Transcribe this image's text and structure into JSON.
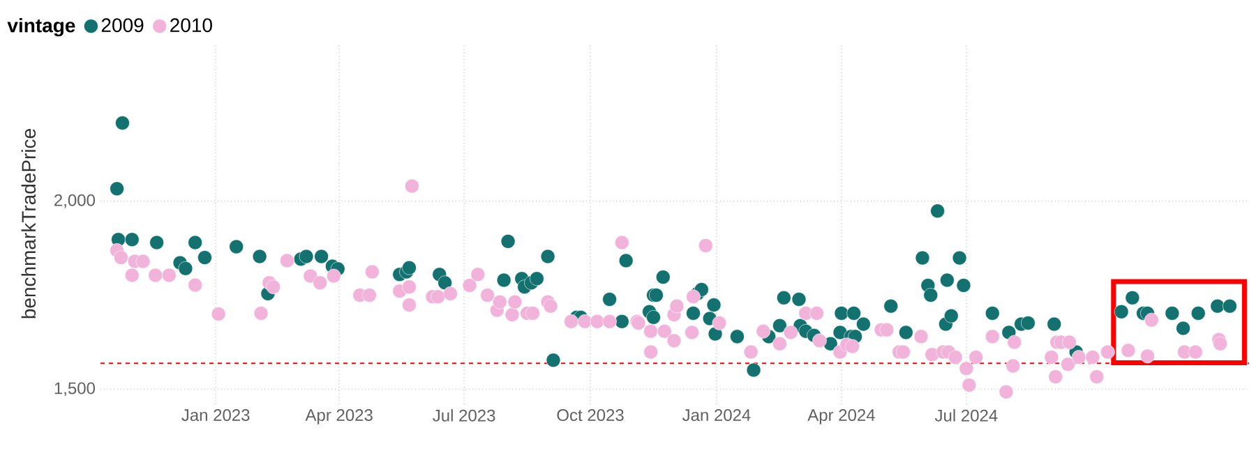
{
  "chart_data": {
    "type": "scatter",
    "ylabel": "benchmarkTradePrice",
    "legend_title": "vintage",
    "legend": "top left",
    "marker": "circle",
    "grid": true,
    "xlim": [
      "2022-10-09",
      "2025-01-23"
    ],
    "ylim": [
      1460,
      2420
    ],
    "xticks": [
      {
        "value": "2023-01-01",
        "label": "Jan 2023"
      },
      {
        "value": "2023-04-01",
        "label": "Apr 2023"
      },
      {
        "value": "2023-07-01",
        "label": "Jul 2023"
      },
      {
        "value": "2023-10-01",
        "label": "Oct 2023"
      },
      {
        "value": "2024-01-01",
        "label": "Jan 2024"
      },
      {
        "value": "2024-04-01",
        "label": "Apr 2024"
      },
      {
        "value": "2024-07-01",
        "label": "Jul 2024"
      }
    ],
    "yticks": [
      {
        "value": 1500,
        "label": "1,500"
      },
      {
        "value": 2000,
        "label": "2,000"
      }
    ],
    "ref_lines": [
      {
        "axis": "y",
        "value": 1569,
        "color": "#ff0000",
        "line_style": "dashed"
      }
    ],
    "series": [
      {
        "name": "2009",
        "color": "#137170",
        "x": [
          "2022-10-21",
          "2022-10-25",
          "2022-10-22",
          "2022-11-01",
          "2022-11-19",
          "2022-12-06",
          "2022-12-10",
          "2022-12-17",
          "2022-12-24",
          "2023-01-16",
          "2023-02-02",
          "2023-02-08",
          "2023-03-04",
          "2023-03-08",
          "2023-03-19",
          "2023-03-27",
          "2023-03-31",
          "2023-05-15",
          "2023-05-20",
          "2023-05-22",
          "2023-06-13",
          "2023-06-17",
          "2023-07-30",
          "2023-08-02",
          "2023-08-12",
          "2023-08-14",
          "2023-08-19",
          "2023-08-23",
          "2023-08-31",
          "2023-09-04",
          "2023-09-21",
          "2023-09-24",
          "2023-10-15",
          "2023-10-24",
          "2023-10-27",
          "2023-11-13",
          "2023-11-16",
          "2023-11-16",
          "2023-11-18",
          "2023-11-23",
          "2023-12-15",
          "2023-12-18",
          "2023-12-21",
          "2023-12-27",
          "2023-12-30",
          "2023-12-31",
          "2024-01-16",
          "2024-01-28",
          "2024-02-08",
          "2024-02-16",
          "2024-02-19",
          "2024-03-01",
          "2024-03-02",
          "2024-03-06",
          "2024-03-12",
          "2024-03-24",
          "2024-03-31",
          "2024-04-01",
          "2024-04-08",
          "2024-04-10",
          "2024-04-11",
          "2024-04-17",
          "2024-05-07",
          "2024-05-18",
          "2024-05-30",
          "2024-06-03",
          "2024-06-05",
          "2024-06-10",
          "2024-06-16",
          "2024-06-17",
          "2024-06-20",
          "2024-06-26",
          "2024-06-29",
          "2024-07-20",
          "2024-08-01",
          "2024-08-10",
          "2024-08-15",
          "2024-09-03",
          "2024-09-19",
          "2024-10-22",
          "2024-10-30",
          "2024-11-07",
          "2024-11-10",
          "2024-11-28",
          "2024-12-06",
          "2024-12-17",
          "2024-12-31",
          "2025-01-09"
        ],
        "values": [
          2033,
          2208,
          1898,
          1898,
          1890,
          1836,
          1821,
          1890,
          1850,
          1879,
          1853,
          1754,
          1846,
          1853,
          1853,
          1827,
          1820,
          1805,
          1812,
          1823,
          1805,
          1783,
          1790,
          1893,
          1794,
          1772,
          1783,
          1794,
          1853,
          1577,
          1691,
          1691,
          1739,
          1680,
          1842,
          1706,
          1750,
          1691,
          1750,
          1798,
          1702,
          1754,
          1765,
          1688,
          1724,
          1647,
          1640,
          1551,
          1640,
          1669,
          1743,
          1739,
          1669,
          1654,
          1643,
          1621,
          1651,
          1702,
          1640,
          1702,
          1640,
          1673,
          1721,
          1651,
          1849,
          1776,
          1750,
          1974,
          1673,
          1790,
          1695,
          1849,
          1776,
          1702,
          1651,
          1673,
          1676,
          1673,
          1599,
          1706,
          1743,
          1702,
          1702,
          1702,
          1662,
          1702,
          1721,
          1721
        ]
      },
      {
        "name": "2010",
        "color": "#f2b3db",
        "x": [
          "2022-10-21",
          "2022-10-24",
          "2022-11-03",
          "2022-11-09",
          "2022-11-01",
          "2022-11-18",
          "2022-11-28",
          "2022-12-17",
          "2023-01-03",
          "2023-02-03",
          "2023-02-09",
          "2023-02-12",
          "2023-02-22",
          "2023-03-11",
          "2023-03-18",
          "2023-03-28",
          "2023-04-16",
          "2023-04-23",
          "2023-04-25",
          "2023-05-15",
          "2023-05-22",
          "2023-05-22",
          "2023-05-24",
          "2023-06-08",
          "2023-06-12",
          "2023-06-21",
          "2023-07-05",
          "2023-07-11",
          "2023-07-18",
          "2023-07-25",
          "2023-07-27",
          "2023-08-05",
          "2023-08-07",
          "2023-08-16",
          "2023-08-20",
          "2023-08-31",
          "2023-09-02",
          "2023-09-17",
          "2023-09-27",
          "2023-10-06",
          "2023-10-15",
          "2023-10-24",
          "2023-11-04",
          "2023-11-05",
          "2023-11-14",
          "2023-11-14",
          "2023-11-24",
          "2023-12-01",
          "2023-12-01",
          "2023-12-03",
          "2023-12-14",
          "2023-12-15",
          "2023-12-24",
          "2024-01-03",
          "2024-01-26",
          "2024-02-04",
          "2024-02-16",
          "2024-02-24",
          "2024-03-06",
          "2024-03-14",
          "2024-03-16",
          "2024-03-31",
          "2024-04-05",
          "2024-04-09",
          "2024-04-30",
          "2024-05-04",
          "2024-05-13",
          "2024-05-16",
          "2024-05-29",
          "2024-06-06",
          "2024-06-14",
          "2024-06-18",
          "2024-06-23",
          "2024-07-01",
          "2024-07-03",
          "2024-07-08",
          "2024-07-20",
          "2024-07-30",
          "2024-08-04",
          "2024-08-05",
          "2024-09-01",
          "2024-09-04",
          "2024-09-05",
          "2024-09-08",
          "2024-09-14",
          "2024-09-13",
          "2024-09-21",
          "2024-10-01",
          "2024-10-04",
          "2024-10-12",
          "2024-10-27",
          "2024-11-10",
          "2024-11-13",
          "2024-12-07",
          "2024-12-15",
          "2025-01-01",
          "2025-01-02"
        ],
        "values": [
          1869,
          1850,
          1840,
          1840,
          1803,
          1803,
          1803,
          1777,
          1700,
          1702,
          1783,
          1772,
          1842,
          1801,
          1783,
          1801,
          1750,
          1750,
          1812,
          1761,
          1772,
          1724,
          2040,
          1746,
          1746,
          1754,
          1776,
          1805,
          1750,
          1710,
          1732,
          1698,
          1732,
          1702,
          1702,
          1732,
          1721,
          1680,
          1680,
          1680,
          1680,
          1890,
          1680,
          1676,
          1654,
          1599,
          1654,
          1629,
          1698,
          1721,
          1651,
          1746,
          1882,
          1676,
          1599,
          1654,
          1621,
          1651,
          1702,
          1702,
          1629,
          1599,
          1618,
          1614,
          1658,
          1658,
          1599,
          1599,
          1640,
          1592,
          1599,
          1599,
          1585,
          1555,
          1511,
          1585,
          1640,
          1493,
          1562,
          1625,
          1585,
          1533,
          1625,
          1625,
          1625,
          1566,
          1585,
          1585,
          1533,
          1599,
          1603,
          1588,
          1684,
          1599,
          1599,
          1632,
          1621
        ]
      }
    ]
  }
}
